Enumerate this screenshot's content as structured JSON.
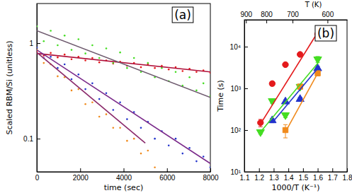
{
  "chart_data": [
    {
      "type": "scatter",
      "x_label": "time (sec)",
      "y_label": "Scaled RBM/Si (unitless)",
      "annotation": "(a)",
      "log": "y",
      "xlim": [
        0,
        8000
      ],
      "ylim": [
        0.045,
        2.6
      ],
      "xticks": [
        0,
        2000,
        4000,
        6000,
        8000
      ],
      "yticks": [
        0.1,
        1
      ],
      "series": [
        {
          "color": "#e41a1c",
          "marker": "dot",
          "x": [
            0,
            320,
            640,
            960,
            1280,
            1600,
            1920,
            2240,
            2560,
            2880,
            3200,
            3520,
            3840,
            4160,
            4480,
            4800,
            5120,
            5440,
            5760,
            6080,
            6400,
            6720,
            7040,
            7360,
            7680,
            8000
          ],
          "values": [
            0.82,
            0.74,
            0.79,
            0.71,
            0.76,
            0.68,
            0.72,
            0.66,
            0.7,
            0.63,
            0.66,
            0.61,
            0.64,
            0.58,
            0.62,
            0.56,
            0.6,
            0.55,
            0.58,
            0.53,
            0.56,
            0.51,
            0.54,
            0.5,
            0.52,
            0.49
          ]
        },
        {
          "color": "#44dd22",
          "marker": "dot",
          "x": [
            0,
            320,
            640,
            960,
            1280,
            1600,
            1920,
            2240,
            2560,
            2880,
            3200,
            3520,
            3840,
            4160,
            4480,
            4800,
            5120,
            5440,
            5760,
            6080,
            6400,
            6720,
            7040,
            7360,
            7680,
            8000
          ],
          "values": [
            1.5,
            1.05,
            1.35,
            0.95,
            1.2,
            0.85,
            1.1,
            0.78,
            0.95,
            0.7,
            0.88,
            0.62,
            0.8,
            0.55,
            0.7,
            0.5,
            0.62,
            0.44,
            0.55,
            0.4,
            0.5,
            0.36,
            0.44,
            0.32,
            0.38,
            0.28
          ]
        },
        {
          "color": "#2233cc",
          "marker": "dot",
          "x": [
            0,
            320,
            640,
            960,
            1280,
            1600,
            1920,
            2240,
            2560,
            2880,
            3200,
            3520,
            3840,
            4160,
            4480,
            4800,
            5120,
            5440,
            5760,
            6080,
            6400,
            6720,
            7040,
            7360,
            7680,
            8000
          ],
          "values": [
            0.9,
            0.7,
            0.72,
            0.55,
            0.6,
            0.42,
            0.47,
            0.33,
            0.38,
            0.26,
            0.3,
            0.2,
            0.24,
            0.16,
            0.19,
            0.13,
            0.15,
            0.1,
            0.12,
            0.085,
            0.1,
            0.07,
            0.08,
            0.058,
            0.065,
            0.05
          ]
        },
        {
          "color": "#f08a1c",
          "marker": "dot",
          "x": [
            0,
            320,
            640,
            960,
            1280,
            1600,
            1920,
            2240,
            2560,
            2880,
            3200,
            3520,
            3840,
            4160,
            4480,
            4800,
            5120,
            5440
          ],
          "values": [
            0.85,
            0.62,
            0.6,
            0.45,
            0.44,
            0.32,
            0.33,
            0.23,
            0.24,
            0.17,
            0.18,
            0.13,
            0.13,
            0.095,
            0.1,
            0.07,
            0.075,
            0.05
          ]
        },
        {
          "type": "line",
          "color": "#b0103a",
          "x": [
            0,
            8000
          ],
          "values": [
            0.78,
            0.5
          ]
        },
        {
          "type": "line",
          "color": "#6e5a6e",
          "x": [
            0,
            8000
          ],
          "values": [
            1.35,
            0.27
          ]
        },
        {
          "type": "line",
          "color": "#7a2a8a",
          "x": [
            0,
            8000
          ],
          "values": [
            0.85,
            0.055
          ]
        },
        {
          "type": "line",
          "color": "#8b2a6b",
          "x": [
            0,
            5000
          ],
          "values": [
            0.8,
            0.09
          ]
        }
      ]
    },
    {
      "type": "scatter",
      "x_label": "1000/T (K⁻¹)",
      "y_label": "Time (s)",
      "x2_label": "T (K)",
      "annotation": "(b)",
      "log": "y",
      "xlim": [
        1.1,
        1.8
      ],
      "ylim": [
        10,
        44000
      ],
      "x2lim": [
        909.1,
        555.6
      ],
      "xticks": [
        1.1,
        1.2,
        1.3,
        1.4,
        1.5,
        1.6,
        1.7,
        1.8
      ],
      "x2ticks": [
        900,
        800,
        700,
        600
      ],
      "yticks": [
        {
          "value": 10,
          "label": "10¹"
        },
        {
          "value": 100,
          "label": "10²"
        },
        {
          "value": 1000,
          "label": "10³"
        },
        {
          "value": 10000,
          "label": "10⁴"
        }
      ],
      "series": [
        {
          "color": "#e41a1c",
          "marker": "circle",
          "x": [
            1.21,
            1.29,
            1.38,
            1.48,
            1.6
          ],
          "values": [
            150,
            1300,
            3700,
            6500,
            20000
          ],
          "errors": [
            30,
            150,
            300,
            500,
            3000
          ]
        },
        {
          "color": "#44dd22",
          "marker": "triangle-down",
          "x": [
            1.21,
            1.29,
            1.38,
            1.48,
            1.6
          ],
          "values": [
            90,
            500,
            230,
            1100,
            5000
          ],
          "errors": [
            10,
            60,
            30,
            150,
            800
          ]
        },
        {
          "color": "#2233cc",
          "marker": "triangle-up",
          "x": [
            1.29,
            1.38,
            1.48,
            1.6
          ],
          "values": [
            170,
            480,
            550,
            3000
          ],
          "errors": [
            20,
            50,
            60,
            400
          ]
        },
        {
          "color": "#f08a1c",
          "marker": "square",
          "x": [
            1.38,
            1.48,
            1.6
          ],
          "values": [
            100,
            1100,
            2300
          ],
          "errors": [
            35,
            150,
            300
          ]
        },
        {
          "type": "line",
          "color": "#e41a1c",
          "x": [
            1.21,
            1.6
          ],
          "values": [
            140,
            22000
          ]
        },
        {
          "type": "line",
          "color": "#44dd22",
          "x": [
            1.21,
            1.6
          ],
          "values": [
            90,
            4000
          ]
        },
        {
          "type": "line",
          "color": "#2233cc",
          "x": [
            1.29,
            1.6
          ],
          "values": [
            150,
            3000
          ]
        },
        {
          "type": "line",
          "color": "#f08a1c",
          "x": [
            1.38,
            1.6
          ],
          "values": [
            90,
            2300
          ]
        }
      ]
    }
  ]
}
